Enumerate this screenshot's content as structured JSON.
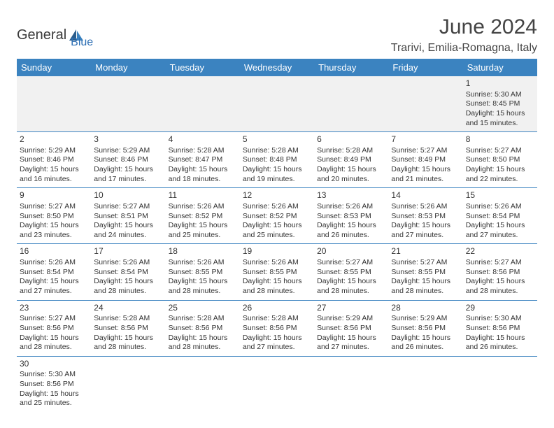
{
  "logo": {
    "text1": "General",
    "text2": "Blue"
  },
  "title": "June 2024",
  "location": "Trarivi, Emilia-Romagna, Italy",
  "colors": {
    "header_bg": "#3b83c0",
    "header_text": "#ffffff",
    "cell_border": "#3b83c0",
    "first_row_bg": "#f1f1f1",
    "text": "#333333",
    "logo_dark": "#3a3a3a",
    "logo_blue": "#2e6fb4"
  },
  "day_headers": [
    "Sunday",
    "Monday",
    "Tuesday",
    "Wednesday",
    "Thursday",
    "Friday",
    "Saturday"
  ],
  "weeks": [
    [
      null,
      null,
      null,
      null,
      null,
      null,
      {
        "n": "1",
        "sr": "Sunrise: 5:30 AM",
        "ss": "Sunset: 8:45 PM",
        "d1": "Daylight: 15 hours",
        "d2": "and 15 minutes."
      }
    ],
    [
      {
        "n": "2",
        "sr": "Sunrise: 5:29 AM",
        "ss": "Sunset: 8:46 PM",
        "d1": "Daylight: 15 hours",
        "d2": "and 16 minutes."
      },
      {
        "n": "3",
        "sr": "Sunrise: 5:29 AM",
        "ss": "Sunset: 8:46 PM",
        "d1": "Daylight: 15 hours",
        "d2": "and 17 minutes."
      },
      {
        "n": "4",
        "sr": "Sunrise: 5:28 AM",
        "ss": "Sunset: 8:47 PM",
        "d1": "Daylight: 15 hours",
        "d2": "and 18 minutes."
      },
      {
        "n": "5",
        "sr": "Sunrise: 5:28 AM",
        "ss": "Sunset: 8:48 PM",
        "d1": "Daylight: 15 hours",
        "d2": "and 19 minutes."
      },
      {
        "n": "6",
        "sr": "Sunrise: 5:28 AM",
        "ss": "Sunset: 8:49 PM",
        "d1": "Daylight: 15 hours",
        "d2": "and 20 minutes."
      },
      {
        "n": "7",
        "sr": "Sunrise: 5:27 AM",
        "ss": "Sunset: 8:49 PM",
        "d1": "Daylight: 15 hours",
        "d2": "and 21 minutes."
      },
      {
        "n": "8",
        "sr": "Sunrise: 5:27 AM",
        "ss": "Sunset: 8:50 PM",
        "d1": "Daylight: 15 hours",
        "d2": "and 22 minutes."
      }
    ],
    [
      {
        "n": "9",
        "sr": "Sunrise: 5:27 AM",
        "ss": "Sunset: 8:50 PM",
        "d1": "Daylight: 15 hours",
        "d2": "and 23 minutes."
      },
      {
        "n": "10",
        "sr": "Sunrise: 5:27 AM",
        "ss": "Sunset: 8:51 PM",
        "d1": "Daylight: 15 hours",
        "d2": "and 24 minutes."
      },
      {
        "n": "11",
        "sr": "Sunrise: 5:26 AM",
        "ss": "Sunset: 8:52 PM",
        "d1": "Daylight: 15 hours",
        "d2": "and 25 minutes."
      },
      {
        "n": "12",
        "sr": "Sunrise: 5:26 AM",
        "ss": "Sunset: 8:52 PM",
        "d1": "Daylight: 15 hours",
        "d2": "and 25 minutes."
      },
      {
        "n": "13",
        "sr": "Sunrise: 5:26 AM",
        "ss": "Sunset: 8:53 PM",
        "d1": "Daylight: 15 hours",
        "d2": "and 26 minutes."
      },
      {
        "n": "14",
        "sr": "Sunrise: 5:26 AM",
        "ss": "Sunset: 8:53 PM",
        "d1": "Daylight: 15 hours",
        "d2": "and 27 minutes."
      },
      {
        "n": "15",
        "sr": "Sunrise: 5:26 AM",
        "ss": "Sunset: 8:54 PM",
        "d1": "Daylight: 15 hours",
        "d2": "and 27 minutes."
      }
    ],
    [
      {
        "n": "16",
        "sr": "Sunrise: 5:26 AM",
        "ss": "Sunset: 8:54 PM",
        "d1": "Daylight: 15 hours",
        "d2": "and 27 minutes."
      },
      {
        "n": "17",
        "sr": "Sunrise: 5:26 AM",
        "ss": "Sunset: 8:54 PM",
        "d1": "Daylight: 15 hours",
        "d2": "and 28 minutes."
      },
      {
        "n": "18",
        "sr": "Sunrise: 5:26 AM",
        "ss": "Sunset: 8:55 PM",
        "d1": "Daylight: 15 hours",
        "d2": "and 28 minutes."
      },
      {
        "n": "19",
        "sr": "Sunrise: 5:26 AM",
        "ss": "Sunset: 8:55 PM",
        "d1": "Daylight: 15 hours",
        "d2": "and 28 minutes."
      },
      {
        "n": "20",
        "sr": "Sunrise: 5:27 AM",
        "ss": "Sunset: 8:55 PM",
        "d1": "Daylight: 15 hours",
        "d2": "and 28 minutes."
      },
      {
        "n": "21",
        "sr": "Sunrise: 5:27 AM",
        "ss": "Sunset: 8:55 PM",
        "d1": "Daylight: 15 hours",
        "d2": "and 28 minutes."
      },
      {
        "n": "22",
        "sr": "Sunrise: 5:27 AM",
        "ss": "Sunset: 8:56 PM",
        "d1": "Daylight: 15 hours",
        "d2": "and 28 minutes."
      }
    ],
    [
      {
        "n": "23",
        "sr": "Sunrise: 5:27 AM",
        "ss": "Sunset: 8:56 PM",
        "d1": "Daylight: 15 hours",
        "d2": "and 28 minutes."
      },
      {
        "n": "24",
        "sr": "Sunrise: 5:28 AM",
        "ss": "Sunset: 8:56 PM",
        "d1": "Daylight: 15 hours",
        "d2": "and 28 minutes."
      },
      {
        "n": "25",
        "sr": "Sunrise: 5:28 AM",
        "ss": "Sunset: 8:56 PM",
        "d1": "Daylight: 15 hours",
        "d2": "and 28 minutes."
      },
      {
        "n": "26",
        "sr": "Sunrise: 5:28 AM",
        "ss": "Sunset: 8:56 PM",
        "d1": "Daylight: 15 hours",
        "d2": "and 27 minutes."
      },
      {
        "n": "27",
        "sr": "Sunrise: 5:29 AM",
        "ss": "Sunset: 8:56 PM",
        "d1": "Daylight: 15 hours",
        "d2": "and 27 minutes."
      },
      {
        "n": "28",
        "sr": "Sunrise: 5:29 AM",
        "ss": "Sunset: 8:56 PM",
        "d1": "Daylight: 15 hours",
        "d2": "and 26 minutes."
      },
      {
        "n": "29",
        "sr": "Sunrise: 5:30 AM",
        "ss": "Sunset: 8:56 PM",
        "d1": "Daylight: 15 hours",
        "d2": "and 26 minutes."
      }
    ],
    [
      {
        "n": "30",
        "sr": "Sunrise: 5:30 AM",
        "ss": "Sunset: 8:56 PM",
        "d1": "Daylight: 15 hours",
        "d2": "and 25 minutes."
      },
      null,
      null,
      null,
      null,
      null,
      null
    ]
  ]
}
